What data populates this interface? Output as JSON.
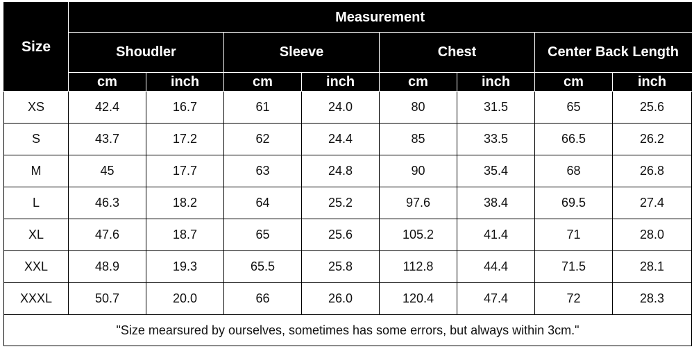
{
  "header": {
    "size": "Size",
    "measurement": "Measurement",
    "groups": [
      "Shoudler",
      "Sleeve",
      "Chest",
      "Center Back Length"
    ],
    "units": [
      "cm",
      "inch",
      "cm",
      "inch",
      "cm",
      "inch",
      "cm",
      "inch"
    ]
  },
  "rows": [
    {
      "size": "XS",
      "values": [
        "42.4",
        "16.7",
        "61",
        "24.0",
        "80",
        "31.5",
        "65",
        "25.6"
      ]
    },
    {
      "size": "S",
      "values": [
        "43.7",
        "17.2",
        "62",
        "24.4",
        "85",
        "33.5",
        "66.5",
        "26.2"
      ]
    },
    {
      "size": "M",
      "values": [
        "45",
        "17.7",
        "63",
        "24.8",
        "90",
        "35.4",
        "68",
        "26.8"
      ]
    },
    {
      "size": "L",
      "values": [
        "46.3",
        "18.2",
        "64",
        "25.2",
        "97.6",
        "38.4",
        "69.5",
        "27.4"
      ]
    },
    {
      "size": "XL",
      "values": [
        "47.6",
        "18.7",
        "65",
        "25.6",
        "105.2",
        "41.4",
        "71",
        "28.0"
      ]
    },
    {
      "size": "XXL",
      "values": [
        "48.9",
        "19.3",
        "65.5",
        "25.8",
        "112.8",
        "44.4",
        "71.5",
        "28.1"
      ]
    },
    {
      "size": "XXXL",
      "values": [
        "50.7",
        "20.0",
        "66",
        "26.0",
        "120.4",
        "47.4",
        "72",
        "28.3"
      ]
    }
  ],
  "note": "\"Size mearsured by ourselves, sometimes has some errors, but always within 3cm.\""
}
